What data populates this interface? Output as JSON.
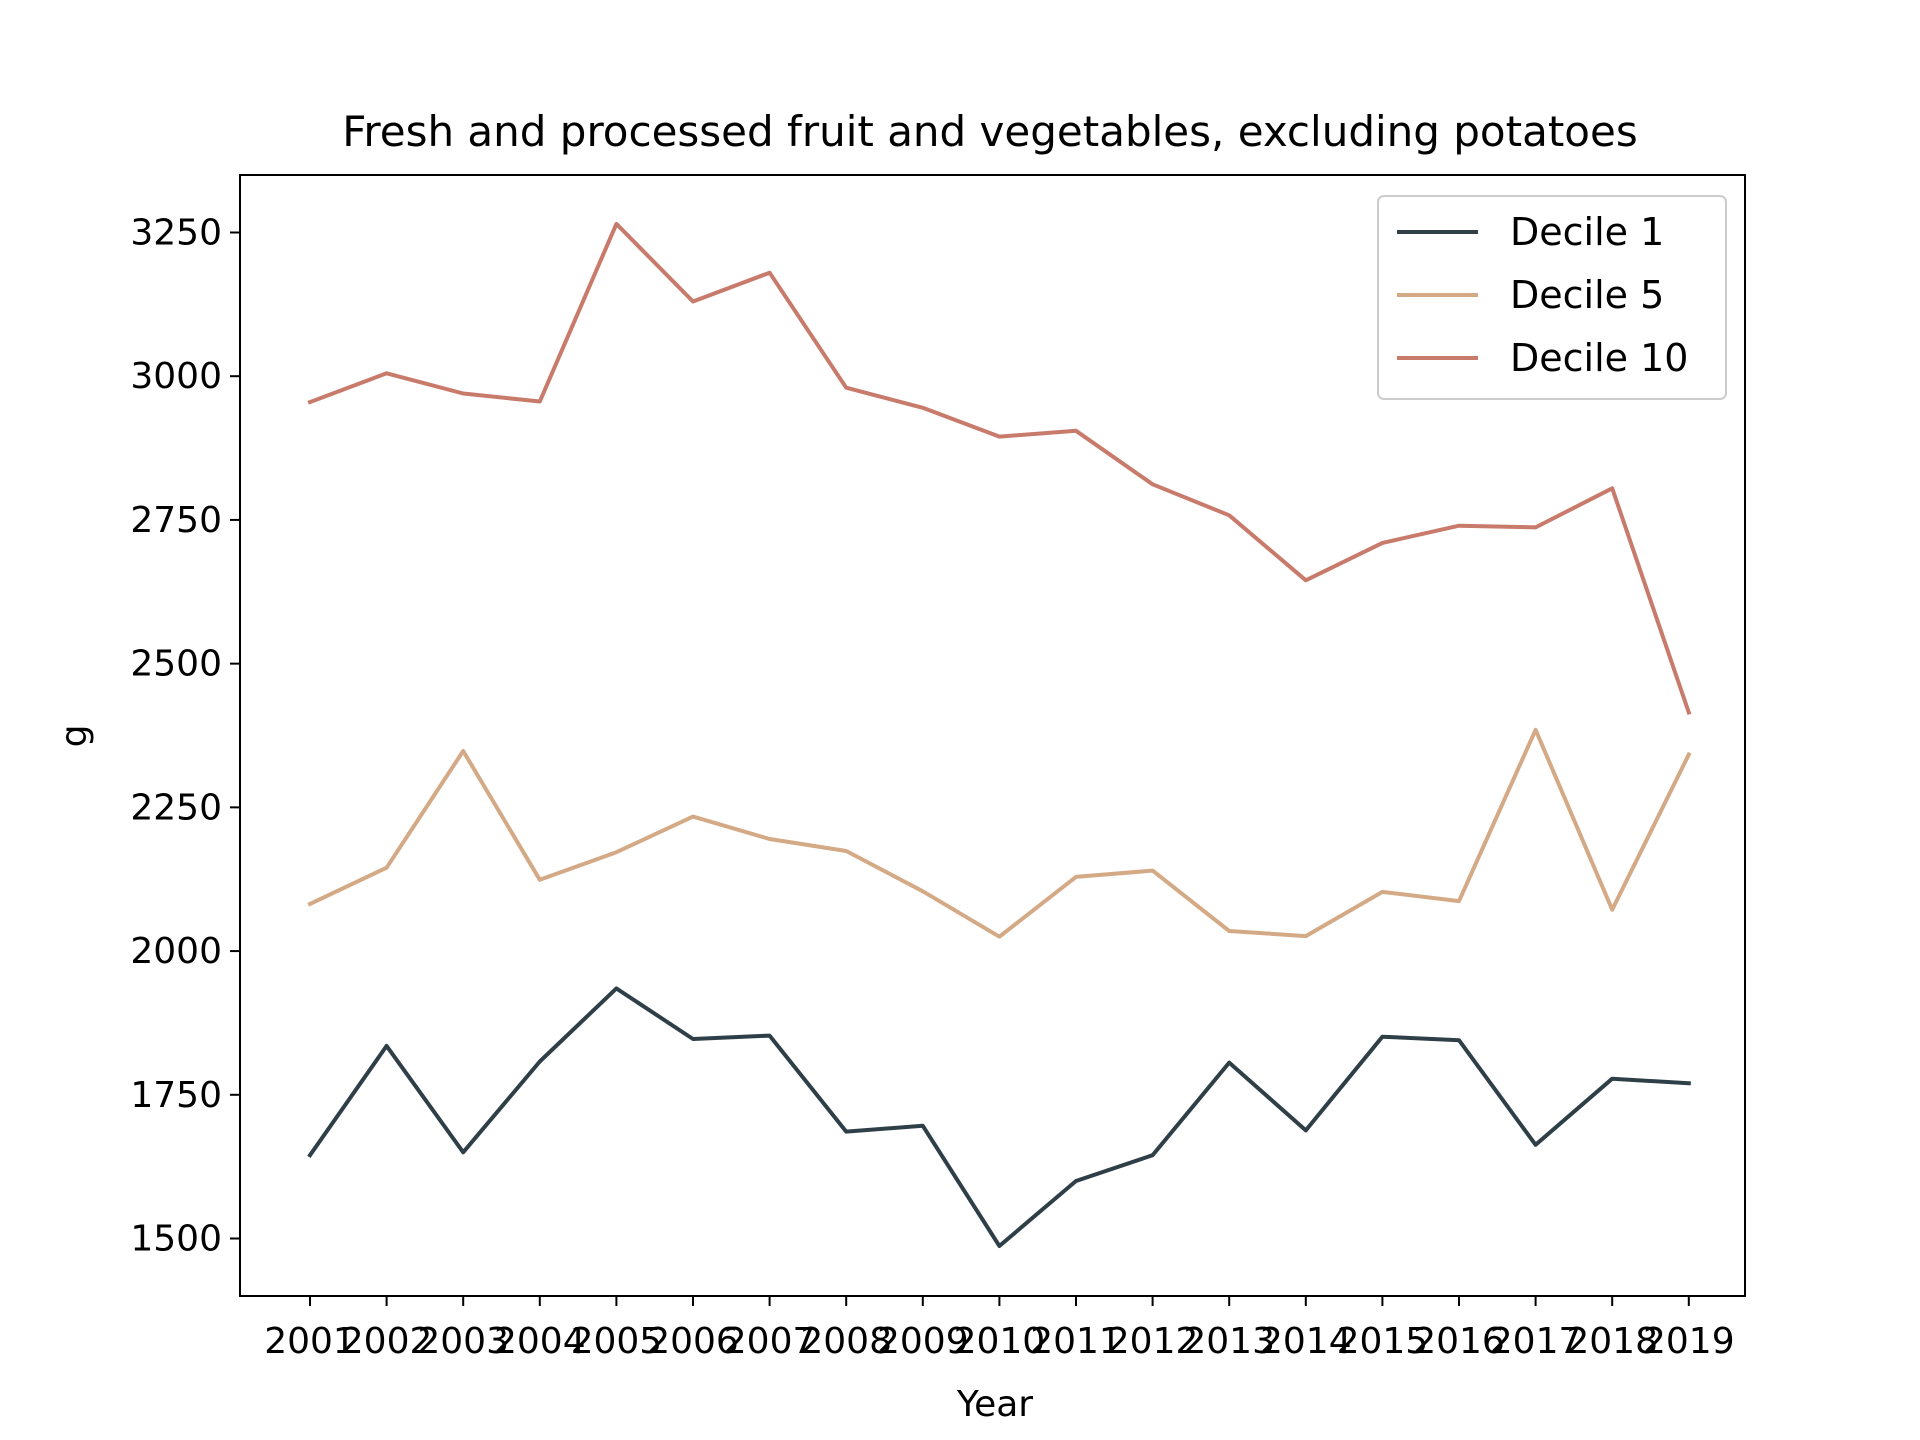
{
  "chart_data": {
    "type": "line",
    "title": "Fresh and processed fruit and vegetables, excluding potatoes",
    "xlabel": "Year",
    "ylabel": "g",
    "x": [
      "2001",
      "2002",
      "2003",
      "2004",
      "2005",
      "2006",
      "2007",
      "2008",
      "2009",
      "2010",
      "2011",
      "2012",
      "2013",
      "2014",
      "2015",
      "2016",
      "2017",
      "2018",
      "2019"
    ],
    "ylim": [
      1400,
      3350
    ],
    "yticks": [
      1500,
      1750,
      2000,
      2250,
      2500,
      2750,
      3000,
      3250
    ],
    "legend_position": "top-right",
    "series": [
      {
        "name": "Decile 1",
        "color": "#2f3f48",
        "values": [
          1645,
          1835,
          1650,
          1808,
          1935,
          1847,
          1853,
          1686,
          1696,
          1487,
          1600,
          1645,
          1806,
          1688,
          1851,
          1845,
          1663,
          1778,
          1770
        ]
      },
      {
        "name": "Decile 5",
        "color": "#d4a985",
        "values": [
          2082,
          2145,
          2348,
          2124,
          2172,
          2234,
          2195,
          2174,
          2104,
          2025,
          2129,
          2140,
          2035,
          2026,
          2103,
          2087,
          2385,
          2072,
          2342
        ]
      },
      {
        "name": "Decile 10",
        "color": "#c87a6b",
        "values": [
          2955,
          3005,
          2970,
          2956,
          3265,
          3130,
          3180,
          2980,
          2945,
          2895,
          2905,
          2812,
          2758,
          2645,
          2710,
          2740,
          2737,
          2805,
          2415
        ]
      }
    ]
  }
}
